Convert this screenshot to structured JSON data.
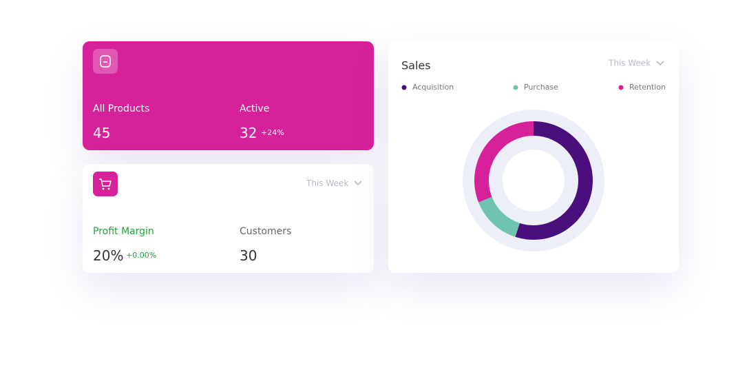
{
  "products_card": {
    "label_total": "All Products",
    "value_total": "45",
    "label_active": "Active",
    "value_active": "32",
    "change_active": "+24%"
  },
  "profit_card": {
    "dropdown": "This Week",
    "label_margin": "Profit Margin",
    "value_margin": "20%",
    "change_margin": "+0.00%",
    "label_customers": "Customers",
    "value_customers": "30"
  },
  "chart_data": {
    "type": "pie",
    "donut": true,
    "title": "Sales",
    "dropdown": "This Week",
    "categories": [
      "Acquisition",
      "Purchase",
      "Retention"
    ],
    "values": [
      55,
      14,
      31
    ],
    "colors": [
      "#4a0f7c",
      "#6ec4ae",
      "#d6219a"
    ]
  }
}
